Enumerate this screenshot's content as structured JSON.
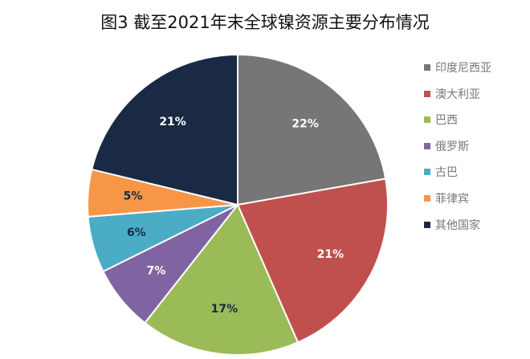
{
  "chart_data": {
    "type": "pie",
    "title": "图3  截至2021年末全球镍资源主要分布情况",
    "categories": [
      "印度尼西亚",
      "澳大利亚",
      "巴西",
      "俄罗斯",
      "古巴",
      "菲律宾",
      "其他国家"
    ],
    "values": [
      22,
      21,
      17,
      7,
      6,
      5,
      21
    ],
    "value_labels": [
      "22%",
      "21%",
      "17%",
      "7%",
      "6%",
      "5%",
      "21%"
    ],
    "colors": [
      "#767676",
      "#C0504D",
      "#9BBB59",
      "#8064A2",
      "#4BACC6",
      "#F79646",
      "#1B2A44"
    ],
    "label_colors": [
      "#ffffff",
      "#ffffff",
      "#1b2a44",
      "#ffffff",
      "#1b2a44",
      "#1b2a44",
      "#ffffff"
    ],
    "legend_position": "right",
    "start_angle": "12 o'clock",
    "direction": "clockwise"
  }
}
